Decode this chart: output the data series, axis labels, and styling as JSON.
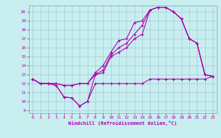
{
  "xlabel": "Windchill (Refroidissement éolien,°C)",
  "xlim": [
    -0.5,
    23.5
  ],
  "ylim": [
    8.7,
    20.7
  ],
  "xticks": [
    0,
    1,
    2,
    3,
    4,
    5,
    6,
    7,
    8,
    9,
    10,
    11,
    12,
    13,
    14,
    15,
    16,
    17,
    18,
    19,
    20,
    21,
    22,
    23
  ],
  "yticks": [
    9,
    10,
    11,
    12,
    13,
    14,
    15,
    16,
    17,
    18,
    19,
    20
  ],
  "bg_color": "#c8eef0",
  "line_color": "#aa00aa",
  "grid_color": "#9bbfcf",
  "series": [
    {
      "x": [
        0,
        1,
        2,
        3,
        4,
        5,
        6,
        7,
        8,
        9,
        10,
        11,
        12,
        13,
        14,
        15,
        16,
        17,
        18,
        19,
        20,
        21,
        22,
        23
      ],
      "y": [
        12.5,
        12.0,
        12.0,
        11.8,
        10.5,
        10.4,
        9.5,
        10.0,
        12.0,
        12.0,
        12.0,
        12.0,
        12.0,
        12.0,
        12.0,
        12.5,
        12.5,
        12.5,
        12.5,
        12.5,
        12.5,
        12.5,
        12.5,
        12.8
      ]
    },
    {
      "x": [
        0,
        1,
        2,
        3,
        4,
        5,
        6,
        7,
        8,
        9,
        10,
        11,
        12,
        13,
        14,
        15,
        16,
        17,
        18,
        19,
        20,
        21,
        22,
        23
      ],
      "y": [
        12.5,
        12.0,
        12.0,
        11.8,
        10.5,
        10.4,
        9.5,
        10.0,
        13.0,
        13.2,
        15.0,
        15.5,
        16.0,
        17.0,
        17.5,
        20.2,
        20.5,
        20.5,
        20.0,
        19.2,
        17.0,
        16.5,
        13.0,
        12.8
      ]
    },
    {
      "x": [
        0,
        1,
        2,
        3,
        4,
        5,
        6,
        7,
        8,
        9,
        10,
        11,
        12,
        13,
        14,
        15,
        16,
        17,
        18,
        19,
        20,
        21,
        22,
        23
      ],
      "y": [
        12.5,
        12.0,
        12.0,
        12.0,
        11.8,
        11.8,
        12.0,
        12.0,
        13.0,
        13.5,
        15.2,
        16.0,
        16.5,
        17.5,
        18.5,
        20.2,
        20.5,
        20.5,
        20.0,
        19.2,
        17.0,
        16.5,
        13.0,
        12.8
      ]
    },
    {
      "x": [
        0,
        1,
        2,
        3,
        4,
        5,
        6,
        7,
        8,
        9,
        10,
        11,
        12,
        13,
        14,
        15,
        16,
        17,
        18,
        19,
        20,
        21,
        22,
        23
      ],
      "y": [
        12.5,
        12.0,
        12.0,
        12.0,
        11.8,
        11.8,
        12.0,
        12.0,
        13.2,
        14.0,
        15.5,
        16.8,
        17.0,
        18.8,
        19.0,
        20.2,
        20.5,
        20.5,
        20.0,
        19.2,
        17.0,
        16.5,
        13.0,
        12.8
      ]
    }
  ]
}
